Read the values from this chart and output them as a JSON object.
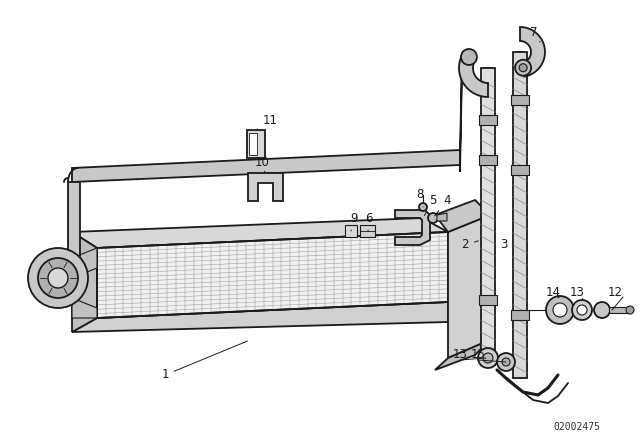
{
  "bg_color": "#ffffff",
  "line_color": "#1a1a1a",
  "fig_width": 6.4,
  "fig_height": 4.48,
  "dpi": 100,
  "watermark": "02002475",
  "font_size": 8.5,
  "lw_pipe": 2.2,
  "lw_thin": 0.8,
  "lw_med": 1.3,
  "pipe_fill": "#c8c8c8",
  "cooler_fill": "#e8e8e8",
  "cooler_grid": "#aaaaaa",
  "dark_fill": "#888888"
}
